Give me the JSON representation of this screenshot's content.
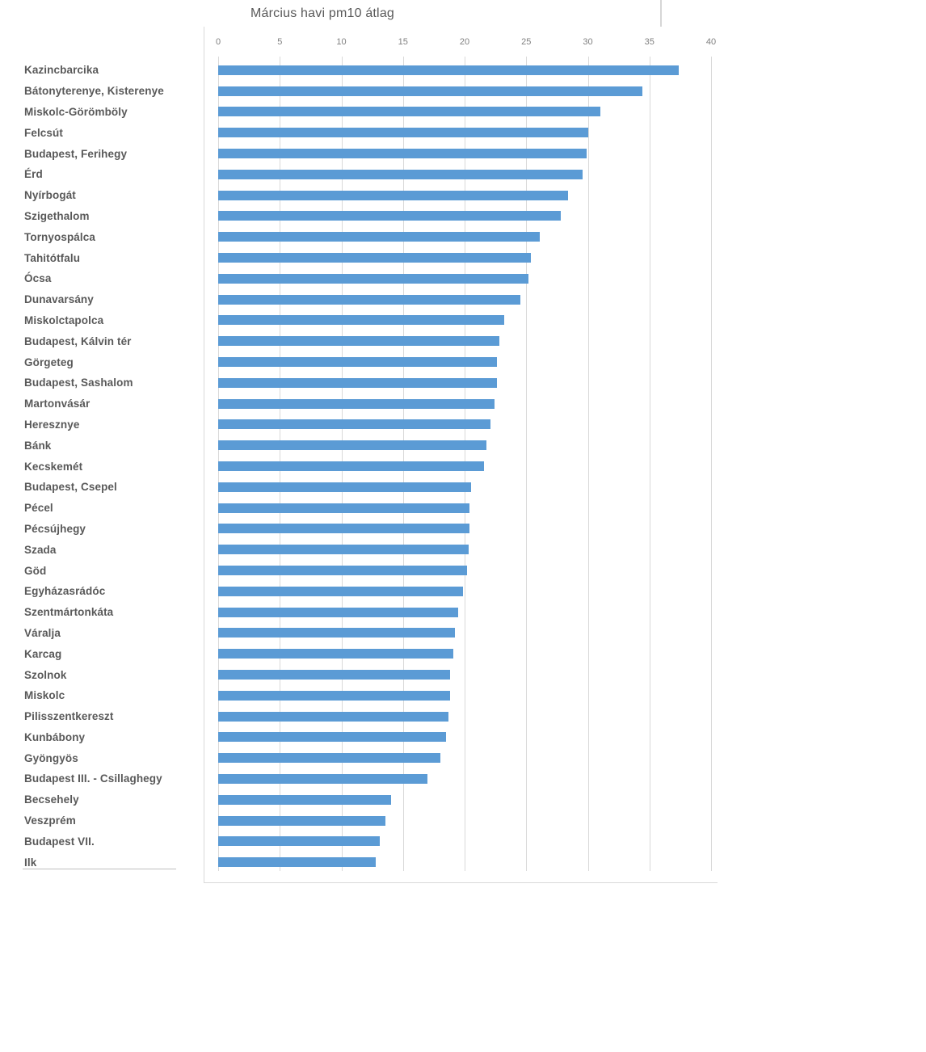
{
  "chart": {
    "colors": {
      "bar": "#5B9BD5",
      "gridline": "#d9d9d9",
      "axis_tick_text": "#808080",
      "title_text": "#595959",
      "category_text": "#595959",
      "frame_border": "#d9d9d9",
      "background": "#ffffff"
    }
  },
  "chart_data": {
    "type": "bar",
    "orientation": "horizontal",
    "title": "Március havi pm10 átlag",
    "xlabel": "",
    "ylabel": "",
    "xlim": [
      0,
      40
    ],
    "x_ticks": [
      0,
      5,
      10,
      15,
      20,
      25,
      30,
      35,
      40
    ],
    "grid": true,
    "legend": "none",
    "categories": [
      "Kazincbarcika",
      "Bátonyterenye, Kisterenye",
      "Miskolc-Görömböly",
      "Felcsút",
      "Budapest, Ferihegy",
      "Érd",
      "Nyírbogát",
      "Szigethalom",
      "Tornyospálca",
      "Tahitótfalu",
      "Ócsa",
      "Dunavarsány",
      "Miskolctapolca",
      "Budapest, Kálvin tér",
      "Görgeteg",
      "Budapest, Sashalom",
      "Martonvásár",
      "Heresznye",
      "Bánk",
      "Kecskemét",
      "Budapest, Csepel",
      "Pécel",
      "Pécsújhegy",
      "Szada",
      "Göd",
      "Egyházasrádóc",
      "Szentmártonkáta",
      "Váralja",
      "Karcag",
      "Szolnok",
      "Miskolc",
      "Pilisszentkereszt",
      "Kunbábony",
      "Gyöngyös",
      "Budapest III. - Csillaghegy",
      "Becsehely",
      "Veszprém",
      "Budapest VII.",
      "Ilk"
    ],
    "values": [
      37.4,
      34.4,
      31.0,
      30.0,
      29.9,
      29.6,
      28.4,
      27.8,
      26.1,
      25.4,
      25.2,
      24.5,
      23.2,
      22.8,
      22.6,
      22.6,
      22.4,
      22.1,
      21.8,
      21.6,
      20.5,
      20.4,
      20.4,
      20.3,
      20.2,
      19.9,
      19.5,
      19.2,
      19.1,
      18.8,
      18.8,
      18.7,
      18.5,
      18.0,
      17.0,
      14.0,
      13.6,
      13.1,
      12.8
    ]
  }
}
